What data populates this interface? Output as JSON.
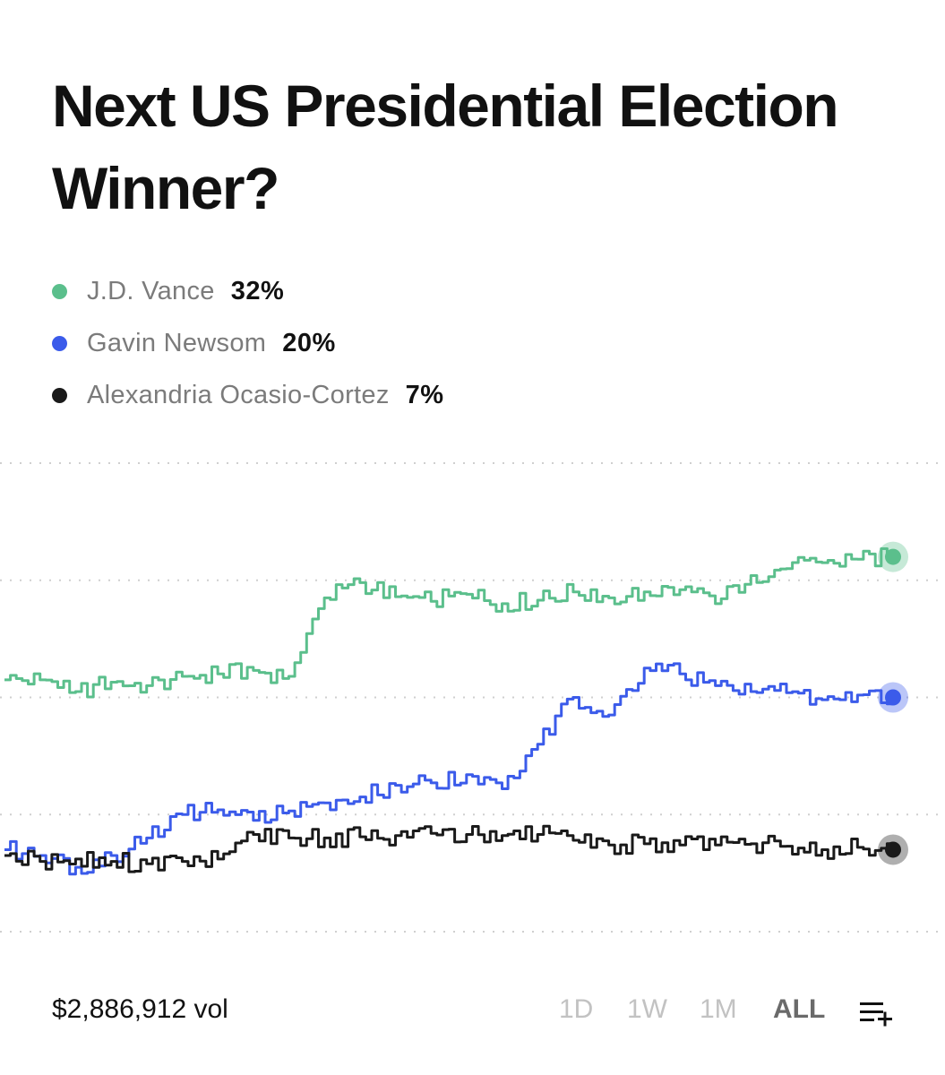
{
  "title": "Next US Presidential Election Winner?",
  "legend": [
    {
      "name": "J.D. Vance",
      "value": "32%",
      "color": "#5bbf8c"
    },
    {
      "name": "Gavin Newsom",
      "value": "20%",
      "color": "#3b5bea"
    },
    {
      "name": "Alexandria Ocasio-Cortez",
      "value": "7%",
      "color": "#1a1a1a"
    }
  ],
  "footer": {
    "volume": "$2,886,912 vol",
    "ranges": [
      "1D",
      "1W",
      "1M",
      "ALL"
    ],
    "active_range": "ALL",
    "menu_icon": "list-add-icon"
  },
  "chart_data": {
    "type": "line",
    "title": "Next US Presidential Election Winner?",
    "xlabel": "",
    "ylabel": "",
    "ylim": [
      0,
      40
    ],
    "grid": true,
    "gridlines": [
      0,
      10,
      20,
      30,
      40
    ],
    "x": [
      0,
      4,
      8,
      12,
      16,
      20,
      24,
      28,
      32,
      36,
      40,
      44,
      48,
      52,
      56,
      60,
      64,
      68,
      72,
      76,
      80,
      84,
      88,
      92,
      96,
      100
    ],
    "series": [
      {
        "name": "J.D. Vance",
        "color": "#5bbf8c",
        "values": [
          21.5,
          21.5,
          20.5,
          21.3,
          21.0,
          21.8,
          22.0,
          22.3,
          21.8,
          28.5,
          29.8,
          28.6,
          28.2,
          28.8,
          28.0,
          28.3,
          29.0,
          28.5,
          29.0,
          29.2,
          28.0,
          30.4,
          31.0,
          31.5,
          31.8,
          32.0
        ]
      },
      {
        "name": "Gavin Newsom",
        "color": "#3b5bea",
        "values": [
          7.0,
          6.5,
          5.5,
          6.5,
          8.0,
          10.0,
          10.4,
          9.5,
          10.3,
          11.0,
          11.5,
          12.5,
          12.7,
          13.4,
          12.2,
          16.0,
          20.0,
          18.5,
          22.5,
          22.0,
          21.0,
          20.5,
          20.4,
          19.8,
          20.2,
          20.0
        ]
      },
      {
        "name": "Alexandria Ocasio-Cortez",
        "color": "#1a1a1a",
        "values": [
          6.5,
          6.0,
          6.2,
          6.0,
          5.8,
          6.0,
          6.2,
          8.3,
          8.0,
          8.0,
          8.1,
          8.2,
          8.4,
          8.3,
          8.2,
          8.3,
          7.8,
          7.4,
          7.5,
          7.4,
          7.4,
          7.5,
          7.3,
          7.0,
          7.2,
          7.0
        ]
      }
    ]
  }
}
